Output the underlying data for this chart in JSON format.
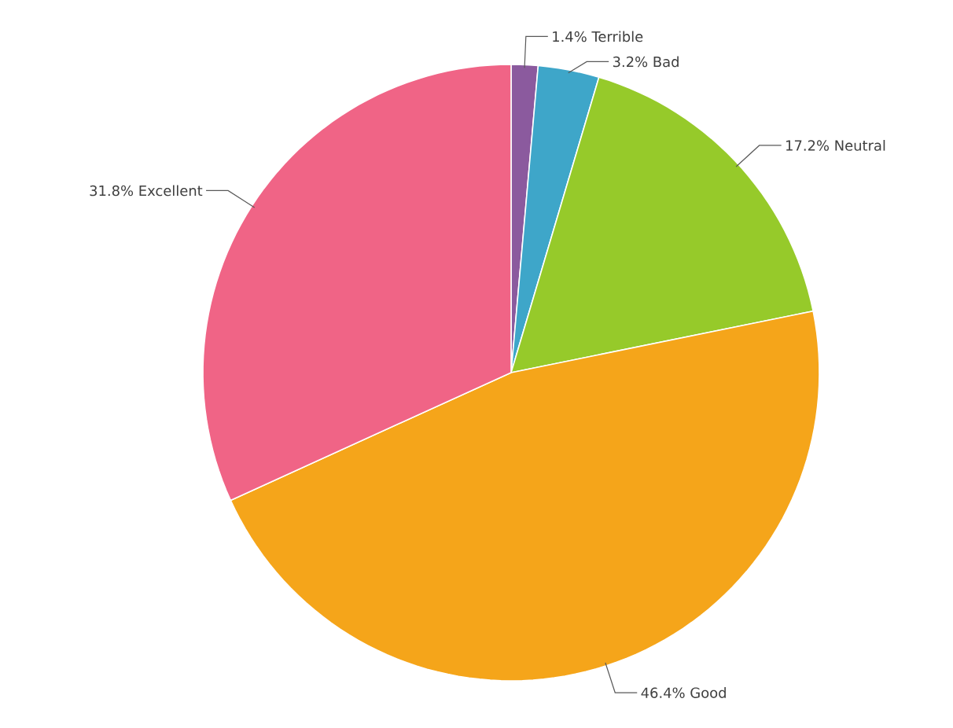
{
  "chart_data": {
    "type": "pie",
    "categories": [
      "Terrible",
      "Bad",
      "Neutral",
      "Good",
      "Excellent"
    ],
    "values": [
      1.4,
      3.2,
      17.2,
      46.4,
      31.8
    ],
    "value_labels": [
      "1.4%",
      "3.2%",
      "17.2%",
      "46.4%",
      "31.8%"
    ],
    "colors": [
      "#8b5a9e",
      "#3ea6c9",
      "#96ca2a",
      "#f5a51a",
      "#f06486"
    ]
  }
}
